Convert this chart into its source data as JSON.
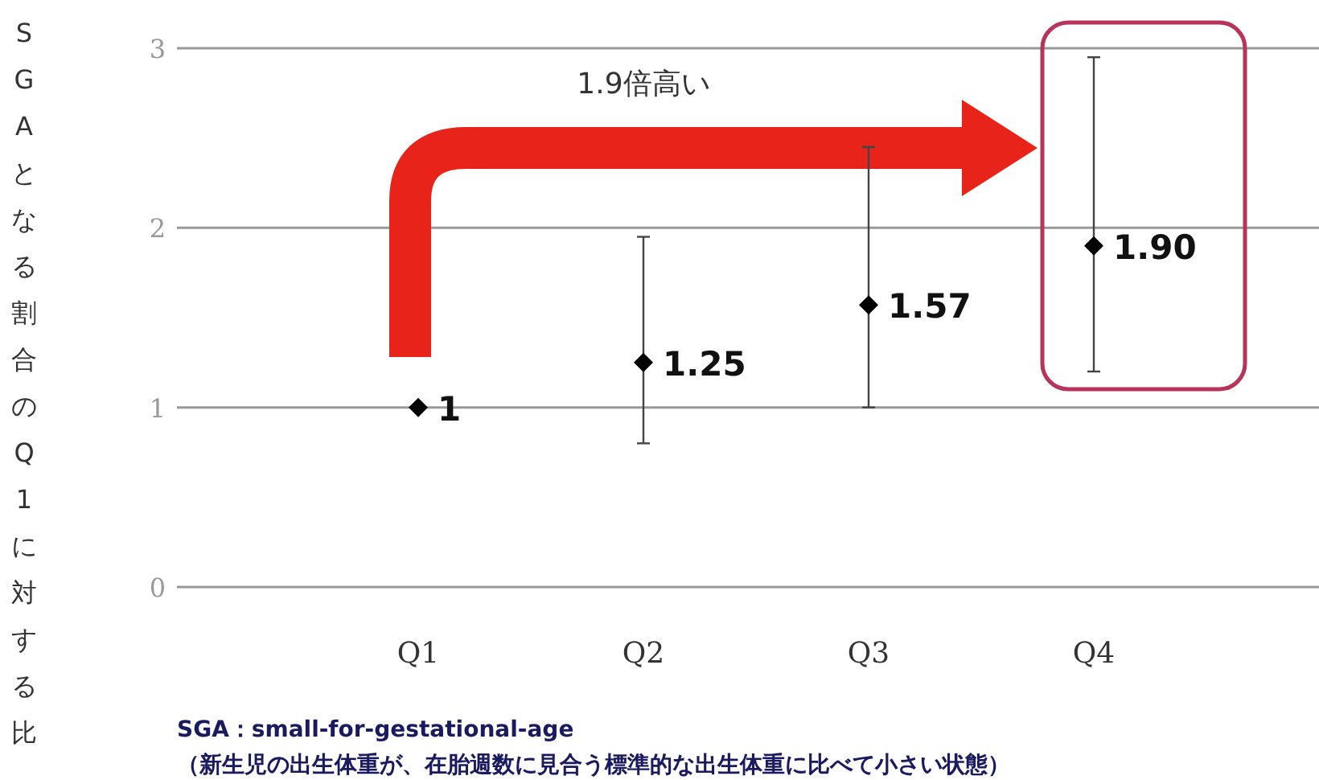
{
  "chart_data": {
    "type": "scatter",
    "ylabel": "SGAとなる割合のQ1に対する比",
    "categories": [
      "Q1",
      "Q2",
      "Q3",
      "Q4"
    ],
    "series": [
      {
        "color": "#000000",
        "values": [
          1,
          1.25,
          1.57,
          1.9
        ],
        "errors": [
          null,
          [
            0.8,
            1.95
          ],
          [
            1.0,
            2.45
          ],
          [
            1.2,
            2.95
          ]
        ],
        "value_labels": [
          "1",
          "1.25",
          "1.57",
          "1.90"
        ]
      }
    ],
    "ylim": [
      0,
      3
    ],
    "yticks": [
      0,
      1,
      2,
      3
    ],
    "grid": "y",
    "marker": "diamond",
    "annotations": [
      "1.9倍高い",
      "SGA：small-for-gestational-age",
      "（新生児の出生体重が、在胎週数に見合う標準的な出生体重に比べて小さい状態）"
    ]
  }
}
